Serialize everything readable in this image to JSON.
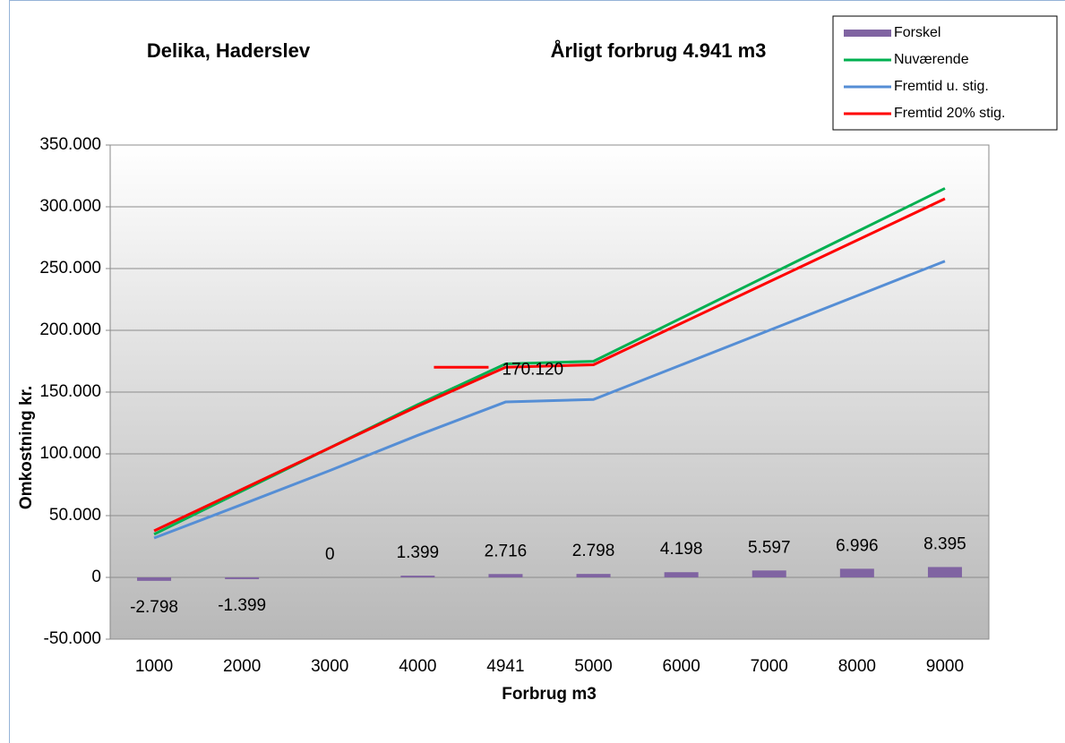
{
  "chart_data": {
    "type": "bar",
    "title": "Delika, Haderslev",
    "subtitle": "Årligt forbrug 4.941 m3",
    "x_label": "Forbrug m3",
    "y_label": "Omkostning kr.",
    "categories": [
      "1000",
      "2000",
      "3000",
      "4000",
      "4941",
      "5000",
      "6000",
      "7000",
      "8000",
      "9000"
    ],
    "series": [
      {
        "name": "Forskel",
        "type": "bar",
        "color": "#8064a2",
        "values": [
          -2798,
          -1399,
          0,
          1399,
          2716,
          2798,
          4198,
          5597,
          6996,
          8395
        ],
        "value_labels": [
          "-2.798",
          "-1.399",
          "0",
          "1.399",
          "2.716",
          "2.798",
          "4.198",
          "5.597",
          "6.996",
          "8.395"
        ]
      },
      {
        "name": "Nuværende",
        "type": "line",
        "color": "#00b050",
        "values": [
          34900,
          69900,
          104900,
          139900,
          172836,
          174900,
          209900,
          244900,
          279900,
          314900
        ]
      },
      {
        "name": "Fremtid u. stig.",
        "type": "line",
        "color": "#558ed5",
        "values": [
          31900,
          59000,
          86500,
          115000,
          142000,
          144000,
          172000,
          200000,
          228000,
          256000
        ]
      },
      {
        "name": "Fremtid 20% stig.",
        "type": "line",
        "color": "#ff0000",
        "values": [
          37698,
          71299,
          104900,
          138501,
          170120,
          172102,
          205702,
          239303,
          272904,
          306505
        ]
      }
    ],
    "annotations": [
      {
        "text": "170.120",
        "series": 3,
        "index": 4
      }
    ],
    "ylim": [
      -50000,
      350000
    ],
    "yticks": [
      {
        "value": -50000,
        "label": "-50.000"
      },
      0,
      {
        "value": 50000,
        "label": "50.000"
      },
      {
        "value": 100000,
        "label": "100.000"
      },
      {
        "value": 150000,
        "label": "150.000"
      },
      {
        "value": 200000,
        "label": "200.000"
      },
      {
        "value": 250000,
        "label": "250.000"
      },
      {
        "value": 300000,
        "label": "300.000"
      },
      {
        "value": 350000,
        "label": "350.000"
      }
    ],
    "grid": true,
    "legend": "top-right"
  }
}
